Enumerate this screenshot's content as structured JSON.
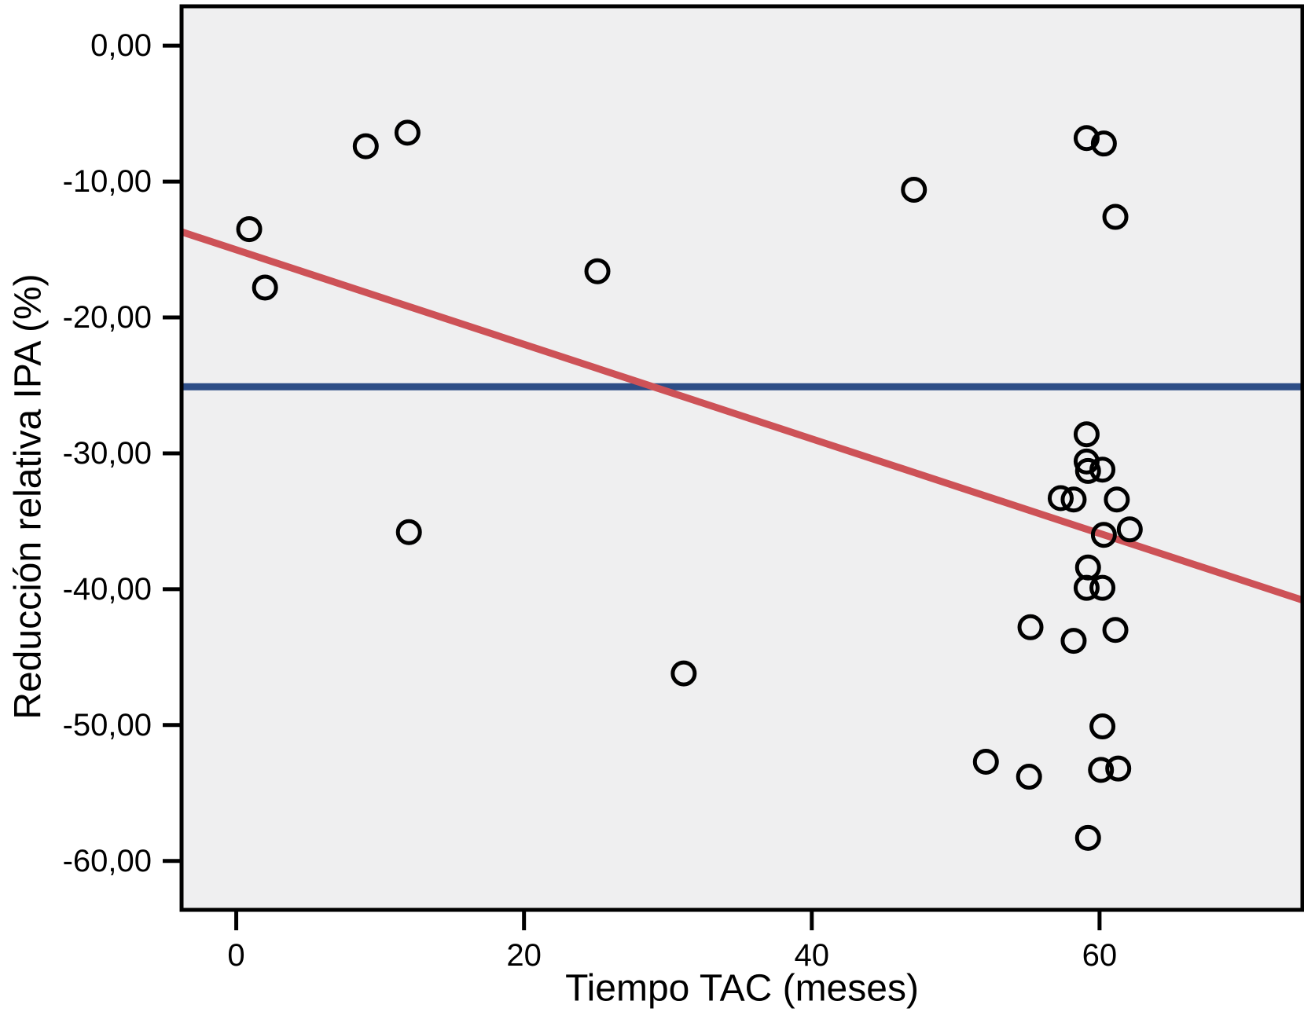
{
  "figure": {
    "background": "#ffffff",
    "plot_background": "#efeff0",
    "frame_color": "#000000",
    "tick_color": "#000000"
  },
  "chart_data": {
    "type": "scatter",
    "title": "",
    "xlabel": "Tiempo TAC (meses)",
    "ylabel": "Reducción relativa IPA (%)",
    "xlim": [
      -3.8,
      74.1
    ],
    "ylim": [
      -63.6,
      2.9
    ],
    "grid": false,
    "legend": false,
    "x_ticks": {
      "values": [
        0,
        20,
        40,
        60
      ],
      "labels": [
        "0",
        "20",
        "40",
        "60"
      ]
    },
    "y_ticks": {
      "values": [
        0,
        -10,
        -20,
        -30,
        -40,
        -50,
        -60
      ],
      "labels": [
        "0,00",
        "-10,00",
        "-20,00",
        "-30,00",
        "-40,00",
        "-50,00",
        "-60,00"
      ]
    },
    "marker": {
      "shape": "open-circle",
      "radius": 14,
      "stroke_width": 5,
      "color": "#000000"
    },
    "points": [
      [
        9.0,
        -7.4
      ],
      [
        11.9,
        -6.4
      ],
      [
        0.9,
        -13.5
      ],
      [
        2.0,
        -17.8
      ],
      [
        25.1,
        -16.6
      ],
      [
        47.1,
        -10.6
      ],
      [
        59.1,
        -6.8
      ],
      [
        60.3,
        -7.2
      ],
      [
        61.1,
        -12.6
      ],
      [
        12.0,
        -35.8
      ],
      [
        31.1,
        -46.2
      ],
      [
        59.1,
        -28.6
      ],
      [
        59.1,
        -30.6
      ],
      [
        59.2,
        -31.3
      ],
      [
        60.2,
        -31.2
      ],
      [
        57.3,
        -33.3
      ],
      [
        58.2,
        -33.4
      ],
      [
        61.2,
        -33.4
      ],
      [
        60.3,
        -36.0
      ],
      [
        62.1,
        -35.6
      ],
      [
        59.2,
        -38.4
      ],
      [
        59.1,
        -39.9
      ],
      [
        60.2,
        -39.9
      ],
      [
        55.2,
        -42.8
      ],
      [
        61.1,
        -43.0
      ],
      [
        58.2,
        -43.8
      ],
      [
        60.2,
        -50.1
      ],
      [
        52.1,
        -52.7
      ],
      [
        55.1,
        -53.8
      ],
      [
        60.1,
        -53.3
      ],
      [
        61.3,
        -53.2
      ],
      [
        59.2,
        -58.3
      ]
    ],
    "regression_line": {
      "x1": -3.8,
      "y1": -13.7,
      "x2": 74.1,
      "y2": -40.8,
      "color": "#cd5257",
      "width": 9
    },
    "reference_line": {
      "y": -25.1,
      "color": "#2d4d86",
      "width": 9
    }
  }
}
